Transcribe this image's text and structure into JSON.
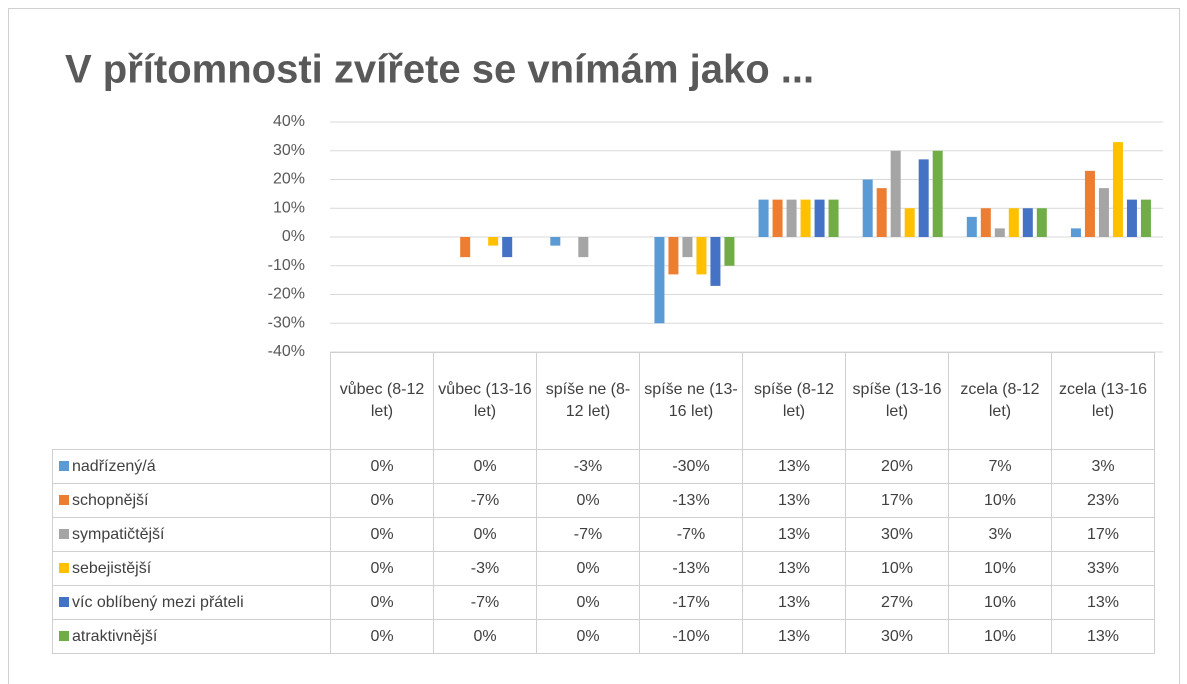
{
  "chart_data": {
    "type": "bar",
    "title": "V přítomnosti zvířete se vnímám jako ...",
    "categories": [
      "vůbec (8-12 let)",
      "vůbec (13-16 let)",
      "spíše ne (8-12 let)",
      "spíše ne (13-16 let)",
      "spíše (8-12 let)",
      "spíše (13-16 let)",
      "zcela (8-12 let)",
      "zcela (13-16 let)"
    ],
    "series": [
      {
        "name": "nadřízený/á",
        "color": "#5b9bd5",
        "values": [
          0,
          0,
          -3,
          -30,
          13,
          20,
          7,
          3
        ],
        "value_labels": [
          "0%",
          "0%",
          "-3%",
          "-30%",
          "13%",
          "20%",
          "7%",
          "3%"
        ]
      },
      {
        "name": "schopnější",
        "color": "#ed7d31",
        "values": [
          0,
          -7,
          0,
          -13,
          13,
          17,
          10,
          23
        ],
        "value_labels": [
          "0%",
          "-7%",
          "0%",
          "-13%",
          "13%",
          "17%",
          "10%",
          "23%"
        ]
      },
      {
        "name": "sympatičtější",
        "color": "#a5a5a5",
        "values": [
          0,
          0,
          -7,
          -7,
          13,
          30,
          3,
          17
        ],
        "value_labels": [
          "0%",
          "0%",
          "-7%",
          "-7%",
          "13%",
          "30%",
          "3%",
          "17%"
        ]
      },
      {
        "name": "sebejistější",
        "color": "#ffc000",
        "values": [
          0,
          -3,
          0,
          -13,
          13,
          10,
          10,
          33
        ],
        "value_labels": [
          "0%",
          "-3%",
          "0%",
          "-13%",
          "13%",
          "10%",
          "10%",
          "33%"
        ]
      },
      {
        "name": "víc oblíbený mezi přáteli",
        "color": "#4472c4",
        "values": [
          0,
          -7,
          0,
          -17,
          13,
          27,
          10,
          13
        ],
        "value_labels": [
          "0%",
          "-7%",
          "0%",
          "-17%",
          "13%",
          "27%",
          "10%",
          "13%"
        ]
      },
      {
        "name": "atraktivnější",
        "color": "#70ad47",
        "values": [
          0,
          0,
          0,
          -10,
          13,
          30,
          10,
          13
        ],
        "value_labels": [
          "0%",
          "0%",
          "0%",
          "-10%",
          "13%",
          "30%",
          "10%",
          "13%"
        ]
      }
    ],
    "ylim": [
      -40,
      40
    ],
    "yticks": [
      {
        "value": -40,
        "label": "-40%"
      },
      {
        "value": -30,
        "label": "-30%"
      },
      {
        "value": -20,
        "label": "-20%"
      },
      {
        "value": -10,
        "label": "-10%"
      },
      {
        "value": 0,
        "label": "0%"
      },
      {
        "value": 10,
        "label": "10%"
      },
      {
        "value": 20,
        "label": "20%"
      },
      {
        "value": 30,
        "label": "30%"
      },
      {
        "value": 40,
        "label": "40%"
      }
    ],
    "grid": true
  }
}
